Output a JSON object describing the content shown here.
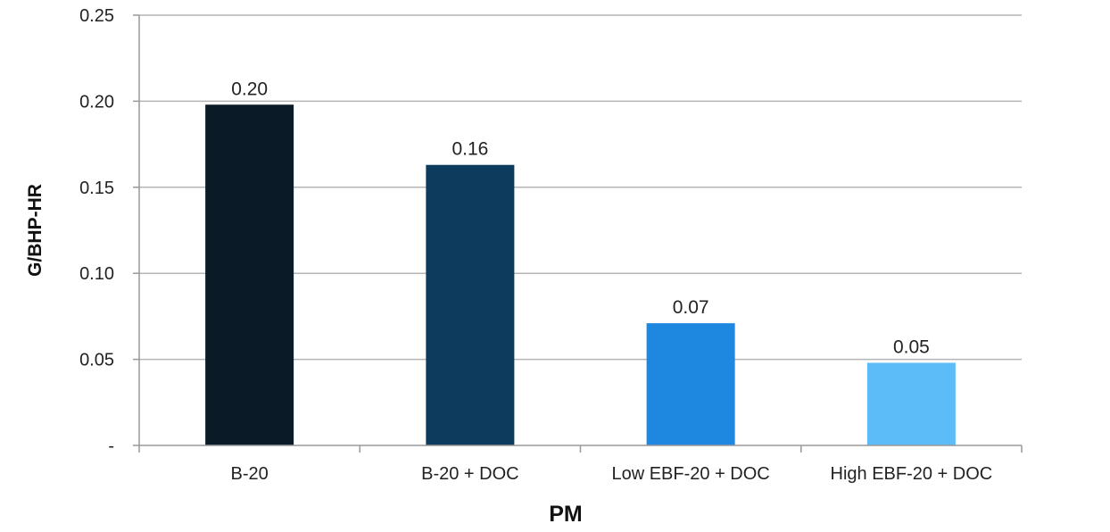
{
  "chart_data": {
    "type": "bar",
    "title": "",
    "xlabel": "PM",
    "ylabel": "G/BHP-HR",
    "categories": [
      "B-20",
      "B-20 + DOC",
      "Low EBF-20 + DOC",
      "High EBF-20 + DOC"
    ],
    "values": [
      0.198,
      0.163,
      0.071,
      0.048
    ],
    "data_labels": [
      "0.20",
      "0.16",
      "0.07",
      "0.05"
    ],
    "bar_colors": [
      "#0a1a26",
      "#0d3b5e",
      "#1e88e0",
      "#5bbcf8"
    ],
    "ylim": [
      0,
      0.25
    ],
    "yticks": [
      0,
      0.05,
      0.1,
      0.15,
      0.2,
      0.25
    ],
    "ytick_labels": [
      "-",
      "0.05",
      "0.10",
      "0.15",
      "0.20",
      "0.25"
    ],
    "grid": true,
    "legend": "none"
  }
}
